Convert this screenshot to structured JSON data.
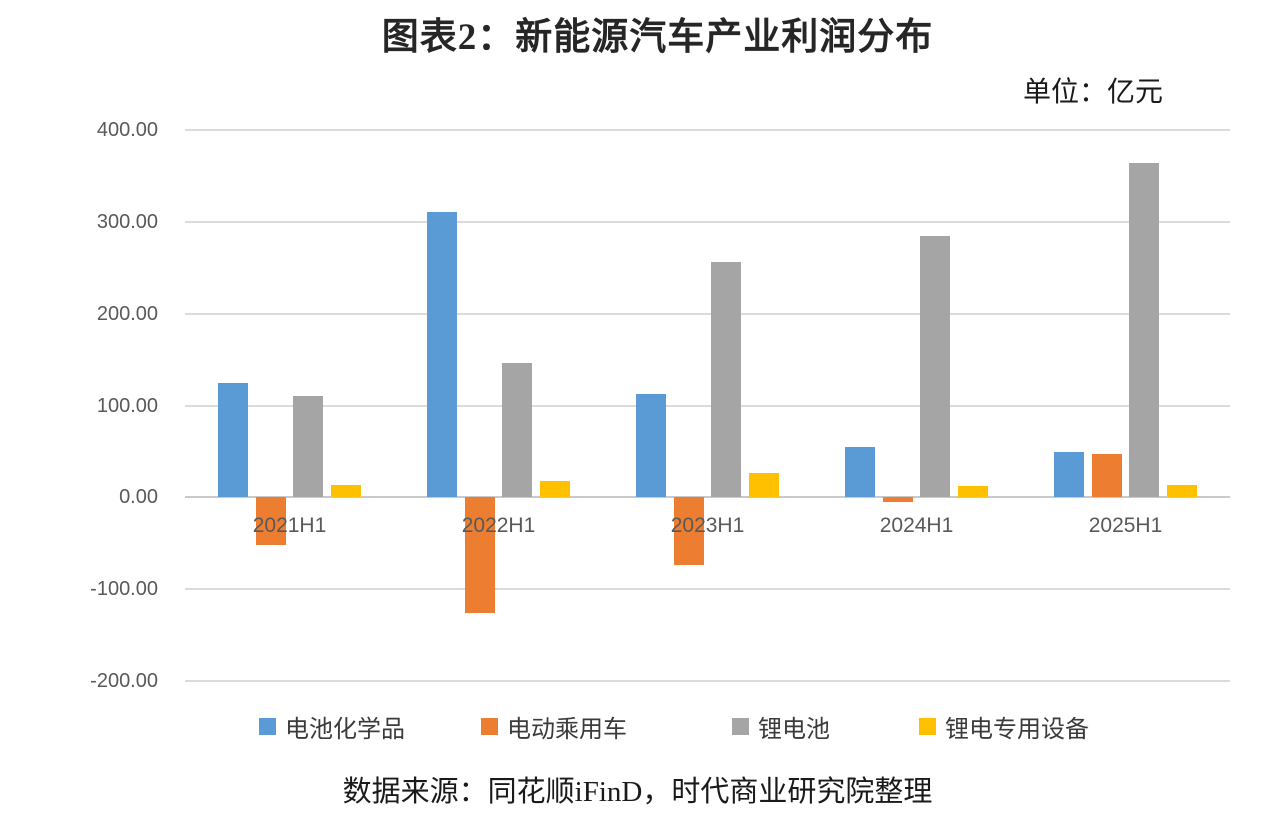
{
  "header": {
    "title": "图表2：新能源汽车产业利润分布",
    "unit_label": "单位：亿元"
  },
  "source_note": "数据来源：同花顺iFinD，时代商业研究院整理",
  "chart_data": {
    "type": "bar",
    "title": "图表2：新能源汽车产业利润分布",
    "unit": "亿元",
    "categories": [
      "2021H1",
      "2022H1",
      "2023H1",
      "2024H1",
      "2025H1"
    ],
    "series": [
      {
        "name": "电池化学品",
        "color": "#5B9BD5",
        "values": [
          124,
          311,
          112,
          55,
          49
        ]
      },
      {
        "name": "电动乘用车",
        "color": "#ED7D31",
        "values": [
          -52,
          -126,
          -74,
          -5,
          47
        ]
      },
      {
        "name": "锂电池",
        "color": "#A5A5A5",
        "values": [
          110,
          146,
          256,
          285,
          364
        ]
      },
      {
        "name": "锂电专用设备",
        "color": "#FFC000",
        "values": [
          13,
          18,
          26,
          12,
          13
        ]
      }
    ],
    "ylim": [
      -200,
      400
    ],
    "y_tick_interval": 100,
    "y_tick_labels": [
      "400.00",
      "300.00",
      "200.00",
      "100.00",
      "0.00",
      "-100.00",
      "-200.00"
    ],
    "grid": true,
    "gridline_color": "#dbdbdb",
    "zero_line_color": "#c9c9c9",
    "axis_label_color": "#595959",
    "legend_position": "bottom"
  }
}
